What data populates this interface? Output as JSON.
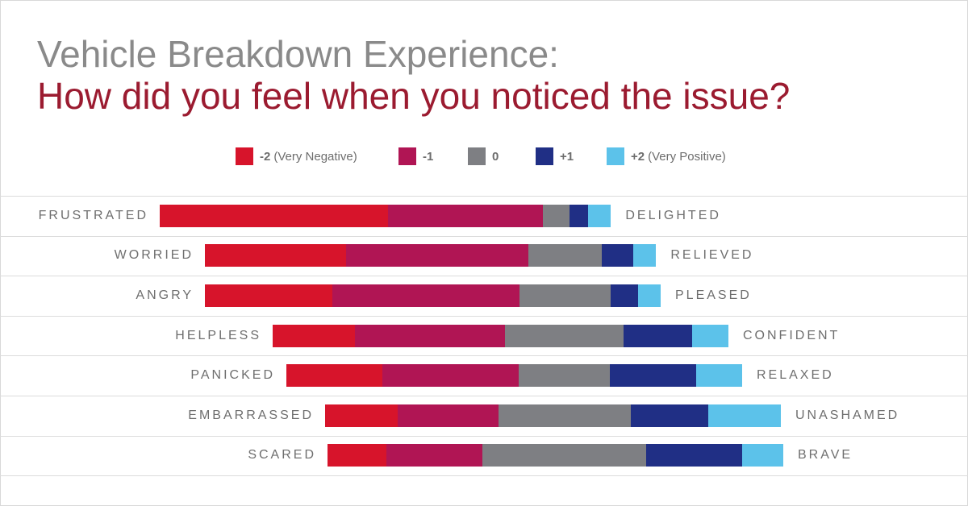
{
  "title": "Vehicle Breakdown Experience:",
  "subtitle": "How did you feel when you noticed the issue?",
  "colors": {
    "neg2": "#d7142b",
    "neg1": "#b01554",
    "zero": "#7e7f83",
    "pos1": "#202f85",
    "pos2": "#5cc2ea"
  },
  "legend": [
    {
      "key": "-2",
      "desc": "(Very Negative)",
      "color": "#d7142b"
    },
    {
      "key": "-1",
      "desc": "",
      "color": "#b01554"
    },
    {
      "key": "0",
      "desc": "",
      "color": "#7e7f83"
    },
    {
      "key": "+1",
      "desc": "",
      "color": "#202f85"
    },
    {
      "key": "+2",
      "desc": "(Very Positive)",
      "color": "#5cc2ea"
    }
  ],
  "chart_data": {
    "type": "bar",
    "orientation": "horizontal",
    "stacked": true,
    "diverging": true,
    "categories": [
      {
        "left": "FRUSTRATED",
        "right": "DELIGHTED"
      },
      {
        "left": "WORRIED",
        "right": "RELIEVED"
      },
      {
        "left": "ANGRY",
        "right": "PLEASED"
      },
      {
        "left": "HELPLESS",
        "right": "CONFIDENT"
      },
      {
        "left": "PANICKED",
        "right": "RELAXED"
      },
      {
        "left": "EMBARRASSED",
        "right": "UNASHAMED"
      },
      {
        "left": "SCARED",
        "right": "BRAVE"
      }
    ],
    "series": [
      {
        "name": "-2 (Very Negative)",
        "values": [
          50,
          31,
          28,
          18,
          21,
          16,
          13
        ]
      },
      {
        "name": "-1",
        "values": [
          34,
          40,
          41,
          33,
          30,
          22,
          21
        ]
      },
      {
        "name": "0",
        "values": [
          6,
          16,
          20,
          26,
          20,
          29,
          36
        ]
      },
      {
        "name": "+1",
        "values": [
          4,
          7,
          6,
          15,
          19,
          17,
          21
        ]
      },
      {
        "name": "+2 (Very Positive)",
        "values": [
          5,
          5,
          5,
          8,
          10,
          16,
          9
        ]
      }
    ],
    "unit": "%"
  }
}
